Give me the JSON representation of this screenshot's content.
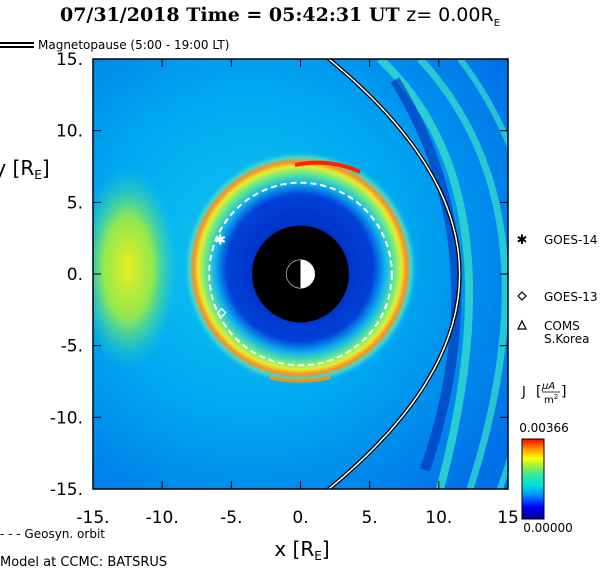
{
  "header": {
    "date": "07/31/2018",
    "time_label": "Time = 05:42:31 UT",
    "z_label": "z= 0.00R",
    "z_sub": "E"
  },
  "legend": {
    "magnetopause": "Magnetopause (5:00 - 19:00 LT)",
    "geosyn": "- - - Geosyn. orbit"
  },
  "footer": {
    "model": "Model at CCMC: BATSRUS"
  },
  "colorbar": {
    "label_main": "J",
    "label_frac_num": "μA",
    "label_frac_den": "m",
    "label_frac_exp": "2",
    "max_label": "0.00366",
    "min_label": "0.00000",
    "colors": [
      "#00008c",
      "#0000ff",
      "#0090ff",
      "#00e0e0",
      "#30e8a0",
      "#a0f040",
      "#ffff00",
      "#ff9000",
      "#ff0000"
    ]
  },
  "chart_data": {
    "type": "heatmap",
    "title": "07/31/2018 Time = 05:42:31 UT z= 0.00RE",
    "xlabel": "x [RE]",
    "ylabel": "y [RE]",
    "xlim": [
      -15,
      15
    ],
    "ylim": [
      -15,
      15
    ],
    "x_ticks": [
      "-15.",
      "-10.",
      "-5.",
      "0.",
      "5.",
      "10.",
      "15"
    ],
    "y_ticks": [
      "15.",
      "10.",
      "5.",
      "0.",
      "-5.",
      "-10.",
      "-15."
    ],
    "quantity": "J",
    "color_range": [
      0.0,
      0.00366
    ],
    "geosynchronous_orbit_radius": 6.6,
    "inner_boundary_radius": 3.5,
    "magnetopause_subsolar_x": 11.5,
    "satellites": [
      {
        "name": "GOES-14",
        "marker": "asterisk",
        "x": -5.8,
        "y": 2.4
      },
      {
        "name": "GOES-13",
        "marker": "diamond",
        "x": -5.7,
        "y": -2.7
      },
      {
        "name": "COMS\nS.Korea",
        "marker": "triangle"
      }
    ]
  }
}
